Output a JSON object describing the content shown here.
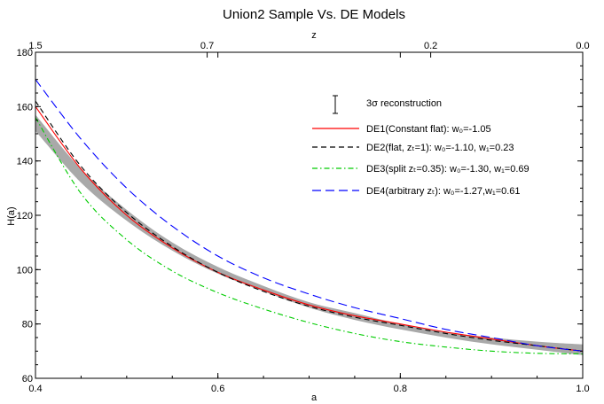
{
  "chart_data": {
    "type": "line",
    "title": "Union2 Sample Vs. DE Models",
    "xlabel": "a",
    "ylabel": "H(a)",
    "top_axis_label": "z",
    "xlim": [
      0.4,
      1.0
    ],
    "ylim": [
      60,
      180
    ],
    "x_ticks": [
      "0.4",
      "0.6",
      "0.8",
      "1.0"
    ],
    "x_tick_values": [
      0.4,
      0.6,
      0.8,
      1.0
    ],
    "y_ticks": [
      "60",
      "80",
      "100",
      "120",
      "140",
      "160",
      "180"
    ],
    "y_tick_values": [
      60,
      80,
      100,
      120,
      140,
      160,
      180
    ],
    "top_ticks": [
      "1.5",
      "0.7",
      "0.2",
      "0.0"
    ],
    "top_tick_values_z": [
      1.5,
      0.7,
      0.2,
      0.0
    ],
    "x": [
      0.4,
      0.45,
      0.5,
      0.55,
      0.6,
      0.65,
      0.7,
      0.75,
      0.8,
      0.85,
      0.9,
      0.95,
      1.0
    ],
    "band": {
      "name": "3σ reconstruction",
      "color": "#a9a9a9",
      "upper": [
        157,
        137,
        122,
        110,
        101,
        94,
        88,
        84,
        80,
        77,
        75,
        73.5,
        72.5
      ],
      "lower": [
        151,
        132,
        118,
        107,
        98.5,
        92,
        86,
        81.5,
        78,
        75,
        72.5,
        70.5,
        68.5
      ]
    },
    "series": [
      {
        "name": "DE1(Constant flat): w₀=-1.05",
        "color": "#ff0000",
        "dash": "solid",
        "values": [
          160,
          137,
          120,
          108,
          99,
          92.5,
          87,
          83,
          80,
          77,
          74.5,
          72,
          70
        ]
      },
      {
        "name": "DE2(flat, zₜ=1): w₀=-1.10, w₁=0.23",
        "color": "#000000",
        "dash": "dash",
        "values": [
          162,
          138,
          121,
          108.5,
          99,
          92,
          86.5,
          82.5,
          79.5,
          76.5,
          74,
          72,
          70
        ]
      },
      {
        "name": "DE3(split zₜ=0.35): w₀=-1.30, w₁=0.69",
        "color": "#00cc00",
        "dash": "dashdot",
        "values": [
          156,
          128,
          111,
          99.5,
          91.5,
          85.5,
          80.5,
          76.5,
          73.5,
          71.5,
          70,
          69.2,
          69
        ]
      },
      {
        "name": "DE4(arbitrary zₜ): w₀=-1.27,w₁=0.61",
        "color": "#0000ff",
        "dash": "longdash",
        "values": [
          170,
          148,
          130,
          116,
          105,
          97,
          91,
          86,
          82,
          78,
          75,
          72,
          70
        ]
      }
    ],
    "legend_position": "top-right",
    "grid": false
  }
}
